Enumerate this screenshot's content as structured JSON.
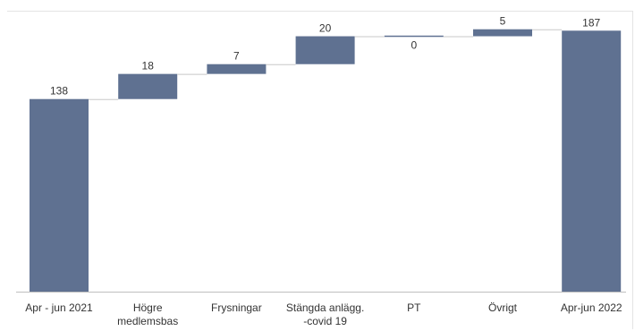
{
  "chart_data": {
    "type": "bar",
    "subtype": "waterfall",
    "categories": [
      [
        "Apr - jun 2021"
      ],
      [
        "Högre",
        "medlemsbas"
      ],
      [
        "Frysningar"
      ],
      [
        "Stängda anlägg.",
        "-covid 19"
      ],
      [
        "PT"
      ],
      [
        "Övrigt"
      ],
      [
        "Apr-jun 2022"
      ]
    ],
    "values": [
      138,
      18,
      7,
      20,
      0,
      5,
      187
    ],
    "kinds": [
      "total",
      "delta",
      "delta",
      "delta",
      "delta",
      "delta",
      "total"
    ],
    "data_labels": [
      "138",
      "18",
      "7",
      "20",
      "0",
      "5",
      "187"
    ],
    "ylim": [
      0,
      200
    ],
    "grid": false,
    "legend": "none",
    "bar_color": "#5f7191",
    "connector_color": "#c8c8c8"
  }
}
